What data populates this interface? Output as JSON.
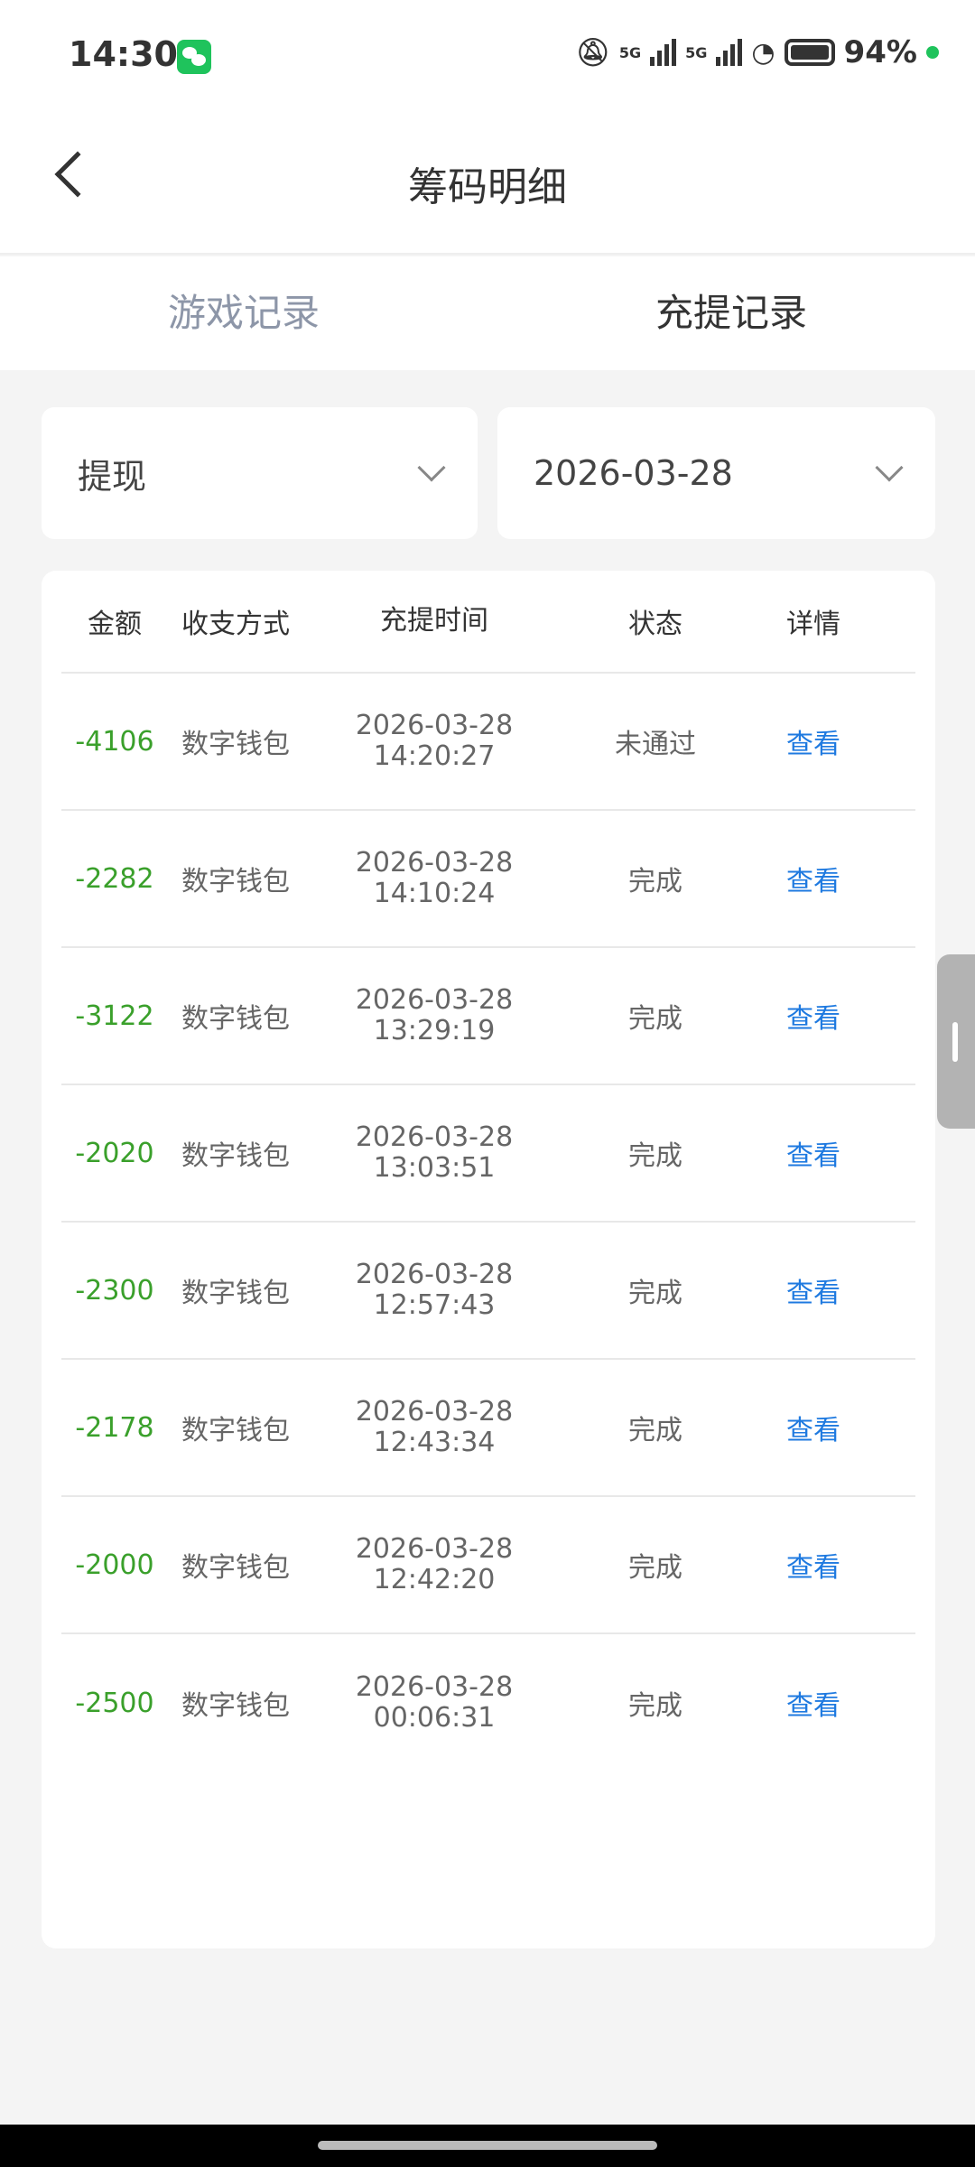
{
  "status_bar": {
    "time": "14:30",
    "battery": "94%",
    "network": [
      "5G",
      "5G"
    ],
    "icons": [
      "wechat-icon",
      "bell-off-icon",
      "signal-icon",
      "wifi-icon",
      "battery-icon"
    ]
  },
  "header": {
    "title": "筹码明细"
  },
  "tabs": [
    {
      "label": "游戏记录",
      "active": false
    },
    {
      "label": "充提记录",
      "active": true
    }
  ],
  "filters": {
    "type": "提现",
    "date": "2026-03-28"
  },
  "table": {
    "columns": [
      "金额",
      "收支方式",
      "充提时间",
      "状态",
      "详情"
    ],
    "rows": [
      {
        "amount": "-4106",
        "method": "数字钱包",
        "date": "2026-03-28",
        "time": "14:20:27",
        "status": "未通过",
        "detail": "查看"
      },
      {
        "amount": "-2282",
        "method": "数字钱包",
        "date": "2026-03-28",
        "time": "14:10:24",
        "status": "完成",
        "detail": "查看"
      },
      {
        "amount": "-3122",
        "method": "数字钱包",
        "date": "2026-03-28",
        "time": "13:29:19",
        "status": "完成",
        "detail": "查看"
      },
      {
        "amount": "-2020",
        "method": "数字钱包",
        "date": "2026-03-28",
        "time": "13:03:51",
        "status": "完成",
        "detail": "查看"
      },
      {
        "amount": "-2300",
        "method": "数字钱包",
        "date": "2026-03-28",
        "time": "12:57:43",
        "status": "完成",
        "detail": "查看"
      },
      {
        "amount": "-2178",
        "method": "数字钱包",
        "date": "2026-03-28",
        "time": "12:43:34",
        "status": "完成",
        "detail": "查看"
      },
      {
        "amount": "-2000",
        "method": "数字钱包",
        "date": "2026-03-28",
        "time": "12:42:20",
        "status": "完成",
        "detail": "查看"
      },
      {
        "amount": "-2500",
        "method": "数字钱包",
        "date": "2026-03-28",
        "time": "00:06:31",
        "status": "完成",
        "detail": "查看"
      }
    ]
  },
  "colors": {
    "amount": "#3aa02b",
    "link": "#1f7ae0",
    "inactive_tab": "#8d96a8"
  }
}
